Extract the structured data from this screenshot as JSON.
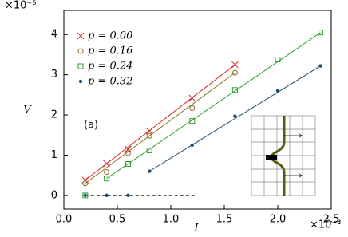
{
  "chart_data": {
    "type": "scatter",
    "x_label": "I",
    "y_label": "V",
    "x_multiplier": "×10⁻³",
    "y_multiplier": "×10⁻⁵",
    "annotation": "(a)",
    "xlim": [
      0,
      2.5
    ],
    "ylim": [
      -0.34,
      4.6
    ],
    "xticks": [
      {
        "value": 0,
        "label": "0.0"
      },
      {
        "value": 0.5,
        "label": "0.5"
      },
      {
        "value": 1,
        "label": "1.0"
      },
      {
        "value": 1.5,
        "label": "1.5"
      },
      {
        "value": 2,
        "label": "2.0"
      },
      {
        "value": 2.5,
        "label": "2.5"
      }
    ],
    "yticks": [
      0,
      1,
      2,
      3,
      4
    ],
    "series": [
      {
        "name": "p = 0.00",
        "color": "#d62728",
        "marker": "x",
        "x": [
          0.2,
          0.4,
          0.6,
          0.8,
          1.2,
          1.6
        ],
        "values": [
          0.38,
          0.79,
          1.15,
          1.6,
          2.42,
          3.25
        ]
      },
      {
        "name": "p = 0.16",
        "color": "#8c6d1f",
        "marker": "circle",
        "x": [
          0.2,
          0.4,
          0.6,
          0.8,
          1.2,
          1.6
        ],
        "values": [
          0.3,
          0.58,
          1.05,
          1.48,
          2.17,
          3.05
        ]
      },
      {
        "name": "p = 0.24",
        "color": "#2ca02c",
        "marker": "square",
        "x": [
          0.2,
          0.4,
          0.6,
          0.8,
          1.2,
          1.6,
          2.0,
          2.4
        ],
        "values": [
          0,
          0.42,
          0.78,
          1.12,
          1.85,
          2.62,
          3.38,
          4.05
        ]
      },
      {
        "name": "p = 0.32",
        "color": "#1f4e6e",
        "marker": "dot",
        "x": [
          0.2,
          0.4,
          0.6,
          0.8,
          1.2,
          1.6,
          2.0,
          2.4
        ],
        "values": [
          0,
          0,
          0,
          0.6,
          1.25,
          1.97,
          2.6,
          3.22
        ]
      }
    ]
  }
}
